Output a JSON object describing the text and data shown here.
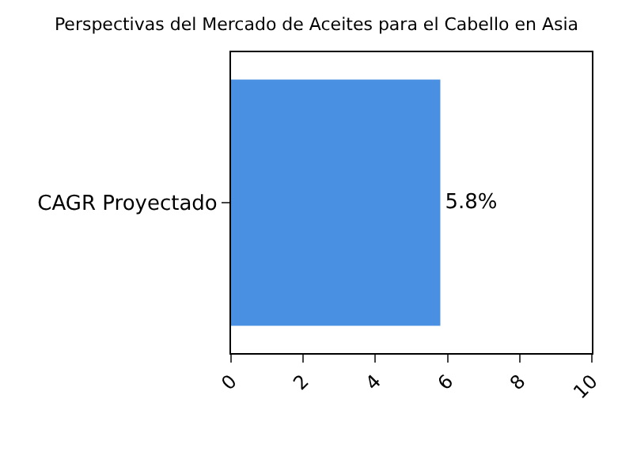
{
  "chart_data": {
    "type": "bar",
    "orientation": "horizontal",
    "title": "Perspectivas del Mercado de Aceites para el Cabello en Asia",
    "categories": [
      "CAGR Proyectado"
    ],
    "values": [
      5.8
    ],
    "value_labels": [
      "5.8%"
    ],
    "color": "#4a90e2",
    "xlim": [
      0,
      10
    ],
    "xticks": [
      0,
      2,
      4,
      6,
      8,
      10
    ]
  }
}
